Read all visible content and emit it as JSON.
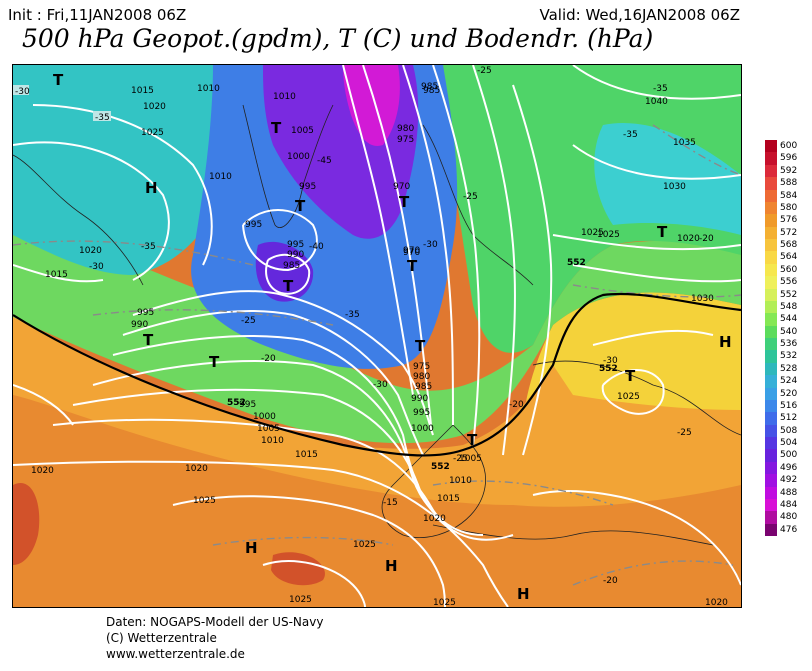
{
  "header": {
    "init": "Init : Fri,11JAN2008 06Z",
    "valid": "Valid: Wed,16JAN2008 06Z",
    "title": "500 hPa Geopot.(gpdm), T (C) und Bodendr. (hPa)"
  },
  "credits": {
    "line1": "Daten: NOGAPS-Modell der US-Navy",
    "line2": "(C) Wetterzentrale",
    "line3": "www.wetterzentrale.de"
  },
  "legend": {
    "values": [
      "600",
      "596",
      "592",
      "588",
      "584",
      "580",
      "576",
      "572",
      "568",
      "564",
      "560",
      "556",
      "552",
      "548",
      "544",
      "540",
      "536",
      "532",
      "528",
      "524",
      "520",
      "516",
      "512",
      "508",
      "504",
      "500",
      "496",
      "492",
      "488",
      "484",
      "480",
      "476"
    ],
    "colors": [
      "#b3001e",
      "#c7102c",
      "#dc2a3a",
      "#e94a3c",
      "#ee6a34",
      "#ef8430",
      "#f09a2a",
      "#f4b032",
      "#f7c43c",
      "#f9d845",
      "#f6e74d",
      "#eff05a",
      "#d6f05a",
      "#b2ee56",
      "#84e854",
      "#5cdc5c",
      "#3fd07a",
      "#2ec49a",
      "#2eb8bc",
      "#36b0d8",
      "#3aa0e6",
      "#3c88ea",
      "#3f6cea",
      "#4652e6",
      "#5536e2",
      "#6822de",
      "#8418e0",
      "#a010e2",
      "#c00ce0",
      "#d810d6",
      "#b00ca0",
      "#7a0470"
    ]
  },
  "map": {
    "pressure_labels": [
      "1015",
      "1015",
      "1020",
      "1025",
      "1010",
      "1005",
      "1000",
      "995",
      "990",
      "985",
      "980",
      "975",
      "970",
      "1035",
      "1040",
      "1030",
      "1025",
      "1020",
      "1030",
      "1025",
      "1015",
      "1020",
      "1020",
      "1025",
      "1025",
      "1025",
      "1020",
      "995",
      "1000",
      "1005",
      "1010",
      "1015",
      "975",
      "980",
      "985",
      "990",
      "995",
      "1000",
      "1005",
      "1010",
      "1015",
      "1020",
      "970",
      "985",
      "990",
      "995",
      "995",
      "1010",
      "1005",
      "1000",
      "1025",
      "1025"
    ],
    "temp_labels": [
      "-30",
      "-35",
      "-35",
      "-30",
      "-45",
      "-40",
      "-30",
      "-35",
      "-25",
      "-20",
      "-35",
      "-30",
      "-25",
      "-20",
      "-25",
      "-30",
      "-20",
      "-15",
      "-15",
      "-20",
      "-25",
      "-35",
      "-35",
      "-25",
      "-20"
    ],
    "centers": [
      "T",
      "H",
      "T",
      "T",
      "T",
      "T",
      "T",
      "T",
      "T",
      "T",
      "T",
      "T",
      "H",
      "H",
      "H",
      "H",
      "H",
      "T",
      "T"
    ],
    "geopot_labels": [
      "552",
      "552",
      "552",
      "552",
      "552"
    ]
  }
}
